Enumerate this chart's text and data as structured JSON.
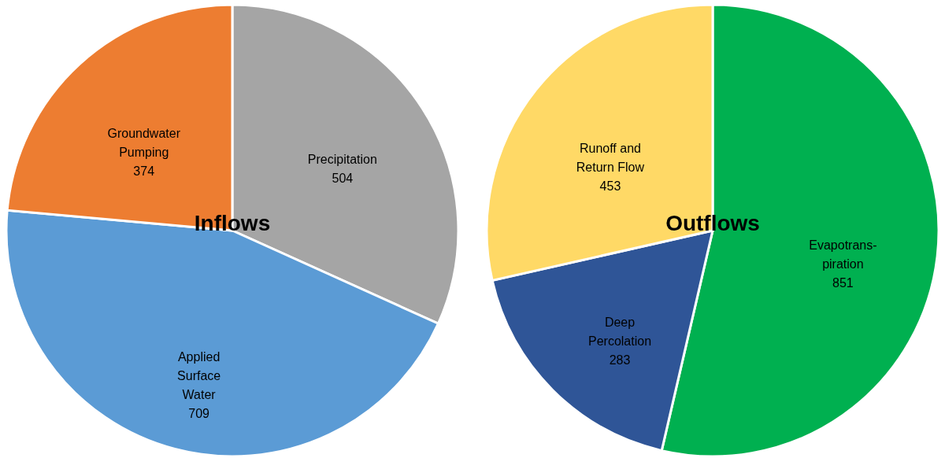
{
  "chart_data": [
    {
      "type": "pie",
      "title": "Inflows",
      "categories": [
        "Precipitation",
        "Applied\nSurface\nWater",
        "Groundwater\nPumping"
      ],
      "values": [
        504,
        709,
        374
      ],
      "colors": [
        "#a5a5a5",
        "#5b9bd5",
        "#ed7d31"
      ],
      "data_labels": true,
      "legend": false
    },
    {
      "type": "pie",
      "title": "Outflows",
      "categories": [
        "Evapotrans-\npiration",
        "Deep\nPercolation",
        "Runoff and\nReturn Flow"
      ],
      "values": [
        851,
        283,
        453
      ],
      "colors": [
        "#00b050",
        "#2f5597",
        "#ffd966"
      ],
      "data_labels": true,
      "legend": false
    }
  ]
}
